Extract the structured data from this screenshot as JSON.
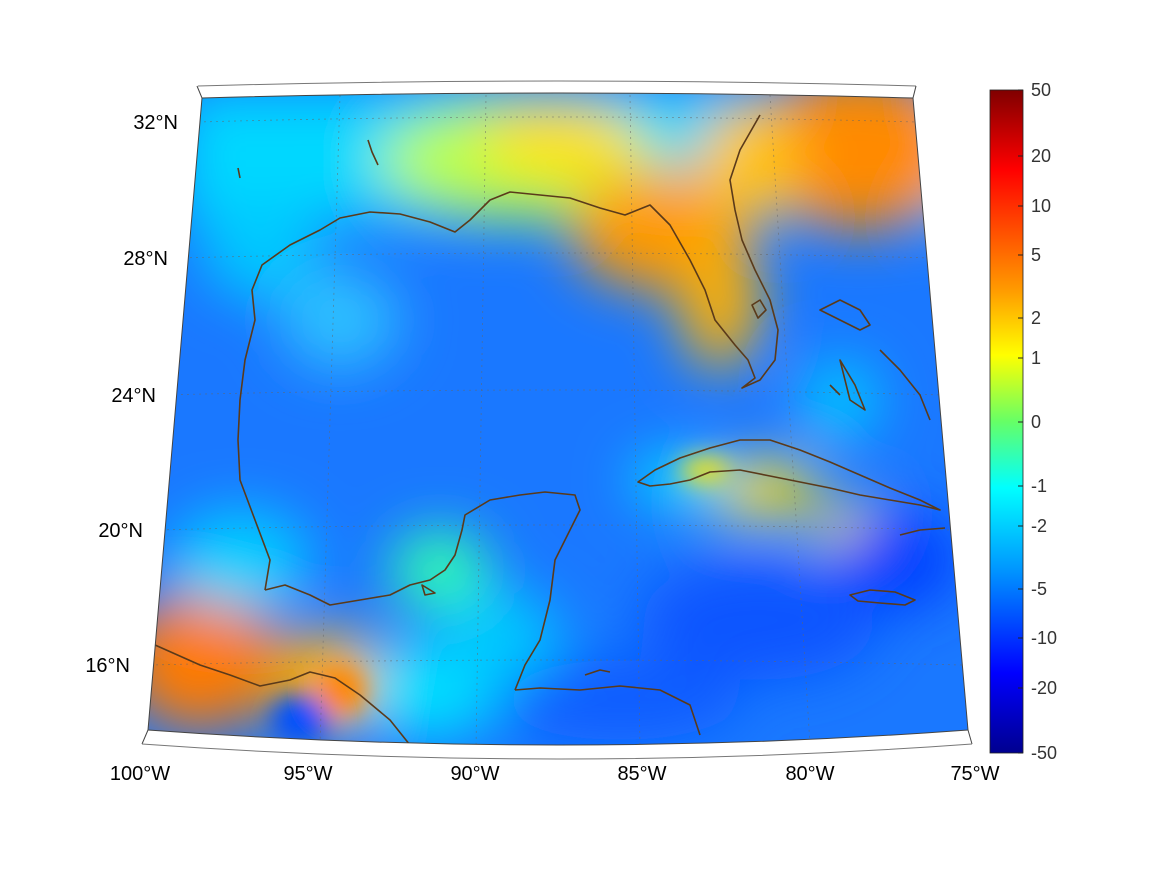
{
  "map": {
    "lat_labels": [
      {
        "lat": 32,
        "text": "32°N"
      },
      {
        "lat": 28,
        "text": "28°N"
      },
      {
        "lat": 24,
        "text": "24°N"
      },
      {
        "lat": 20,
        "text": "20°N"
      },
      {
        "lat": 16,
        "text": "16°N"
      }
    ],
    "lon_labels": [
      {
        "lon": -100,
        "text": "100°W"
      },
      {
        "lon": -95,
        "text": "95°W"
      },
      {
        "lon": -90,
        "text": "90°W"
      },
      {
        "lon": -85,
        "text": "85°W"
      },
      {
        "lon": -80,
        "text": "80°W"
      },
      {
        "lon": -75,
        "text": "75°W"
      }
    ],
    "extent": {
      "lon_min": -100,
      "lon_max": -75,
      "lat_min": 14,
      "lat_max": 32.5
    },
    "coastline_color": "#5a3a1a",
    "grid": "dotted"
  },
  "colorbar": {
    "ticks": [
      "50",
      "20",
      "10",
      "5",
      "2",
      "1",
      "0",
      "-1",
      "-2",
      "-5",
      "-10",
      "-20",
      "-50"
    ],
    "colormap": "jet",
    "top_color": "#800000",
    "bottom_color": "#00008f"
  }
}
